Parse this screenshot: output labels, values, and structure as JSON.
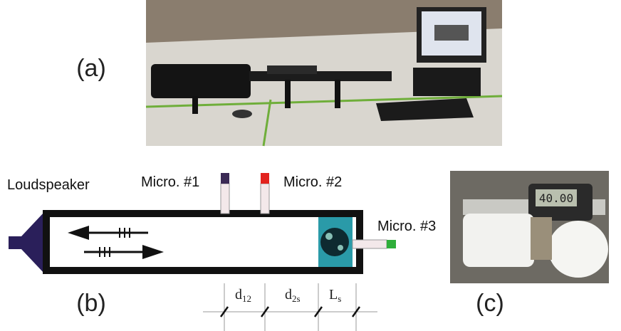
{
  "panels": {
    "a": "(a)",
    "b": "(b)",
    "c": "(c)"
  },
  "loudspeaker": "Loudspeaker",
  "microphones": [
    "Micro. #1",
    "Micro. #2",
    "Micro. #3"
  ],
  "dimensions": [
    {
      "main": "d",
      "sub": "12"
    },
    {
      "main": "d",
      "sub": "2s"
    },
    {
      "main": "L",
      "sub": "s"
    }
  ],
  "caliper_reading": "40.00"
}
